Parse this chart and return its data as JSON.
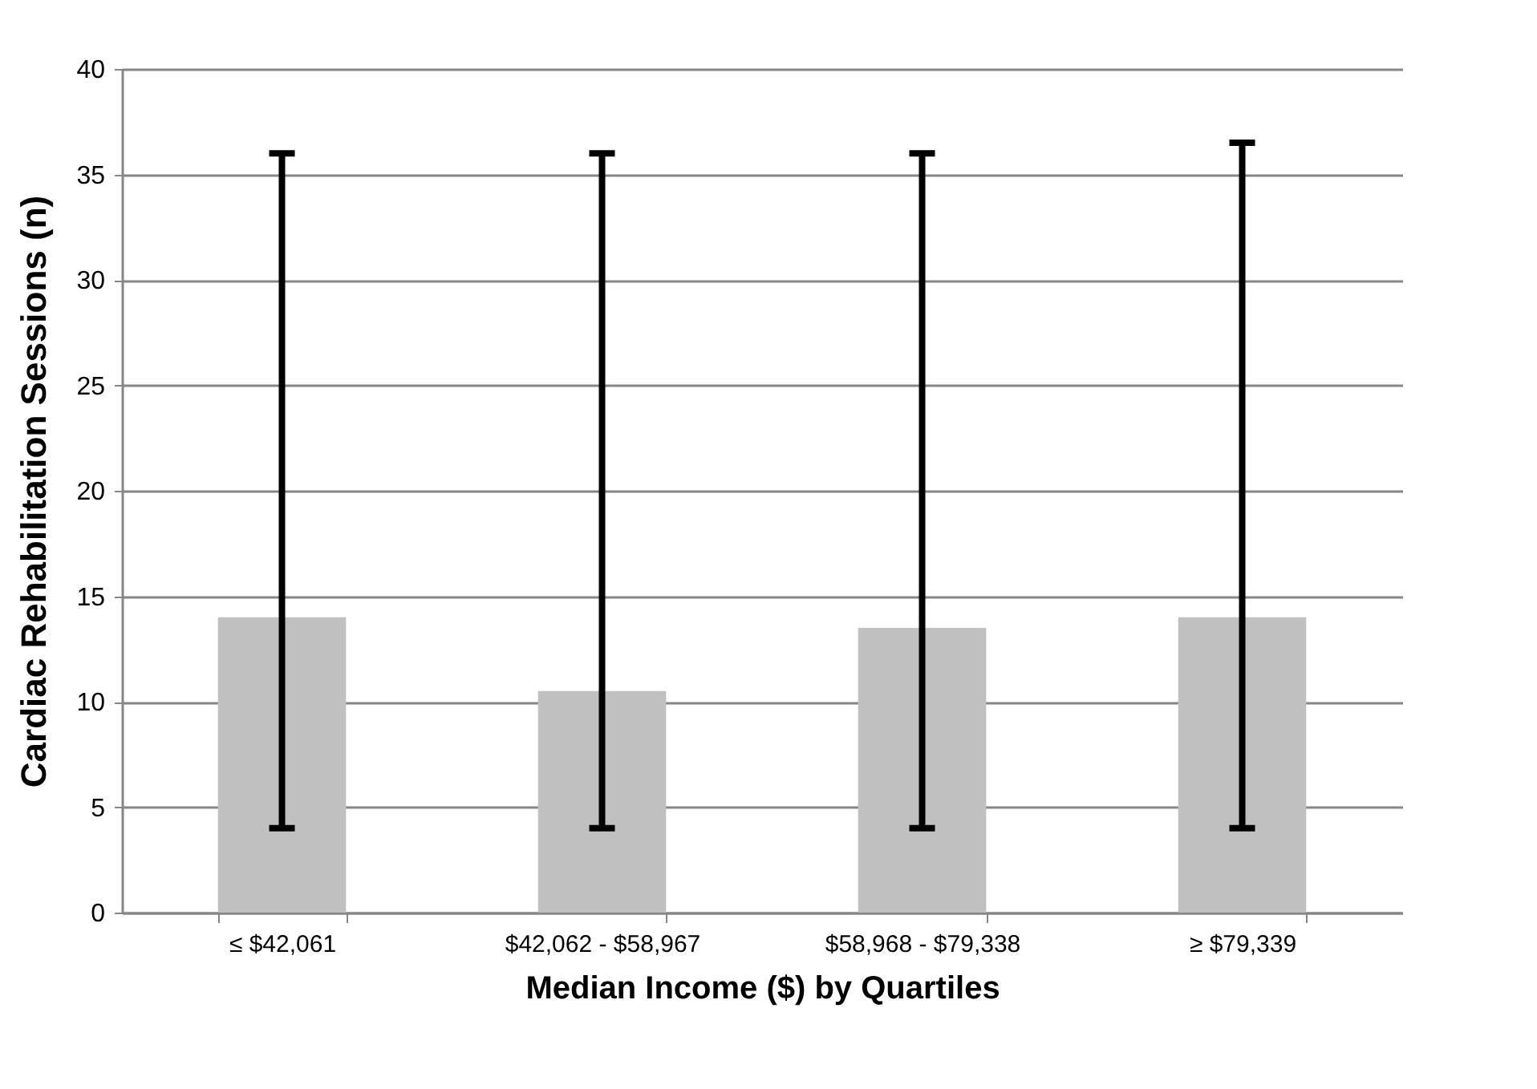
{
  "chart_data": {
    "type": "bar",
    "xlabel": "Median Income ($) by Quartiles",
    "ylabel": "Cardiac Rehabilitation Sessions (n)",
    "categories": [
      "≤ $42,061",
      "$42,062 - $58,967",
      "$58,968 - $79,338",
      "≥ $79,339"
    ],
    "values": [
      14,
      10.5,
      13.5,
      14
    ],
    "errors": [
      [
        4,
        36
      ],
      [
        4,
        36
      ],
      [
        4,
        36
      ],
      [
        4,
        36.5
      ]
    ],
    "color": "#c0c0c0",
    "ylim": [
      0,
      40
    ],
    "yticks": [
      0,
      5,
      10,
      15,
      20,
      25,
      30,
      35,
      40
    ],
    "grid": "y"
  }
}
